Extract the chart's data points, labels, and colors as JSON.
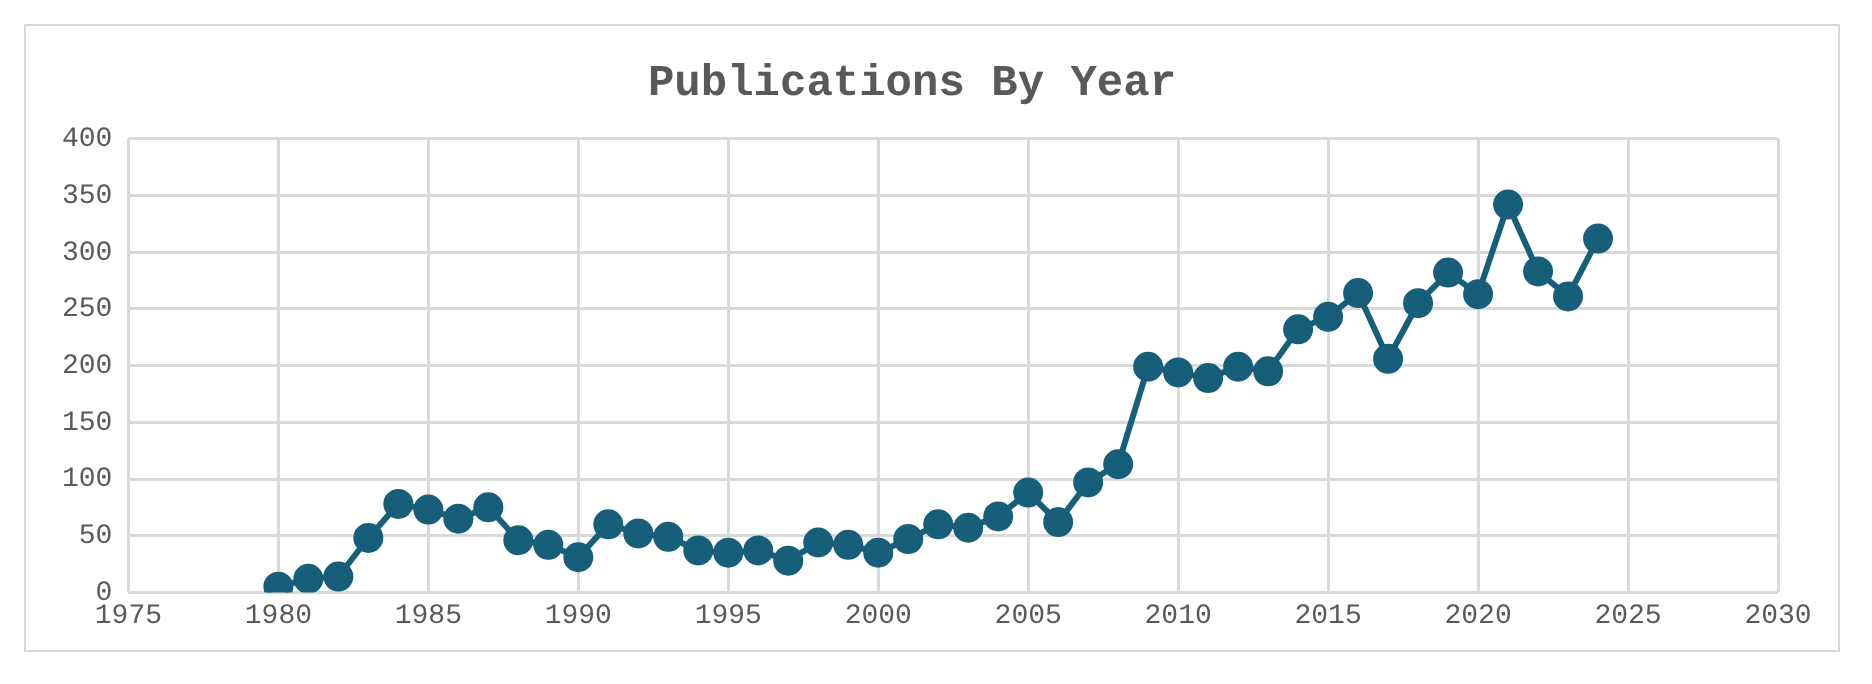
{
  "chart_data": {
    "type": "line",
    "title": "Publications By Year",
    "color": "#175e7a",
    "x": [
      1980,
      1981,
      1982,
      1983,
      1984,
      1985,
      1986,
      1987,
      1988,
      1989,
      1990,
      1991,
      1992,
      1993,
      1994,
      1995,
      1996,
      1997,
      1998,
      1999,
      2000,
      2001,
      2002,
      2003,
      2004,
      2005,
      2006,
      2007,
      2008,
      2009,
      2010,
      2011,
      2012,
      2013,
      2014,
      2015,
      2016,
      2017,
      2018,
      2019,
      2020,
      2021,
      2022,
      2023,
      2024
    ],
    "values": [
      5,
      12,
      14,
      48,
      78,
      73,
      65,
      75,
      46,
      42,
      31,
      60,
      52,
      49,
      37,
      35,
      37,
      28,
      44,
      42,
      35,
      47,
      60,
      57,
      67,
      88,
      62,
      97,
      113,
      199,
      194,
      189,
      199,
      195,
      232,
      243,
      264,
      206,
      255,
      282,
      263,
      342,
      283,
      261,
      312
    ],
    "xlim": [
      1975,
      2030
    ],
    "xticks": [
      1975,
      1980,
      1985,
      1990,
      1995,
      2000,
      2005,
      2010,
      2015,
      2020,
      2025,
      2030
    ],
    "ylim": [
      0,
      400
    ],
    "yticks": [
      0,
      50,
      100,
      150,
      200,
      250,
      300,
      350,
      400
    ],
    "grid": true,
    "marker": "circle",
    "line_style": "solid",
    "legend": false
  }
}
